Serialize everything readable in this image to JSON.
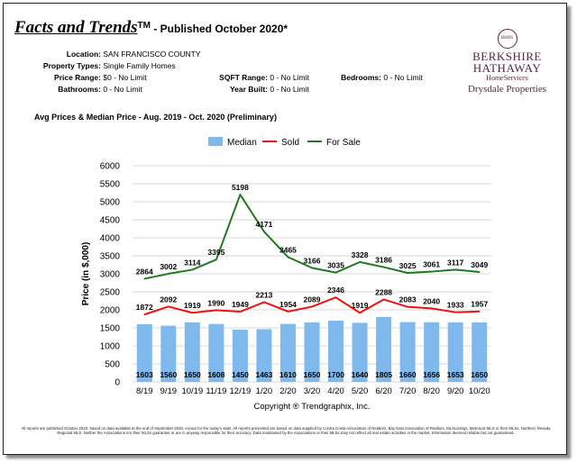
{
  "header": {
    "brand": "Facts and Trends",
    "tm": "TM",
    "subtitle": " - Published October 2020*"
  },
  "info": {
    "location_label": "Location:",
    "location": "SAN FRANCISCO COUNTY",
    "property_label": "Property Types:",
    "property": "Single Family Homes",
    "price_label": "Price Range:",
    "price": "$0 - No Limit",
    "sqft_label": "SQFT Range:",
    "sqft": "0 - No Limit",
    "bedrooms_label": "Bedrooms:",
    "bedrooms": "0 - No Limit",
    "bathrooms_label": "Bathrooms:",
    "bathrooms": "0 - No Limit",
    "yearbuilt_label": "Year Built:",
    "yearbuilt": "0 - No Limit"
  },
  "logo": {
    "seal": "BHHS",
    "line1": "BERKSHIRE",
    "line2": "HATHAWAY",
    "line3": "HomeServices",
    "line4": "Drysdale Properties"
  },
  "chart_title": "Avg Prices & Median Price - Aug. 2019 - Oct. 2020 (Preliminary)",
  "copyright": "Copyright ® Trendgraphix, Inc.",
  "footer": "All reports are published October 2020, based on data available at the end of September 2020, except for the today's stats. All reports presented are based on data supplied by Contra Costa Association of Realtors, Bay East Association of Realtors, MLSListings, MetroList MLS or their MLSs, Northern Nevada Regional MLS. Neither the Associations nor their MLSs guarantee or are in anyway responsible for their accuracy. Data maintained by the Associations or their MLSs may not reflect all real estate activities in the market. Information deemed reliable but not guaranteed.",
  "colors": {
    "median": "#7fb8ec",
    "sold": "#ee1111",
    "forsale": "#1e7a1e",
    "grid": "#d9d9d9"
  },
  "chart_data": {
    "type": "bar",
    "title": "Avg Prices & Median Price - Aug. 2019 - Oct. 2020 (Preliminary)",
    "xlabel": "",
    "ylabel": "Price (in $,000)",
    "ylim": [
      0,
      6000
    ],
    "yticks": [
      0,
      500,
      1000,
      1500,
      2000,
      2500,
      3000,
      3500,
      4000,
      4500,
      5000,
      5500,
      6000
    ],
    "categories": [
      "8/19",
      "9/19",
      "10/19",
      "11/19",
      "12/19",
      "1/20",
      "2/20",
      "3/20",
      "4/20",
      "5/20",
      "6/20",
      "7/20",
      "8/20",
      "9/20",
      "10/20"
    ],
    "legend_position": "top",
    "series": [
      {
        "name": "Median",
        "kind": "bar",
        "values": [
          1603,
          1560,
          1650,
          1608,
          1450,
          1463,
          1610,
          1650,
          1700,
          1640,
          1805,
          1660,
          1656,
          1653,
          1650
        ]
      },
      {
        "name": "Sold",
        "kind": "line",
        "values": [
          1872,
          2092,
          1919,
          1990,
          1949,
          2213,
          1954,
          2089,
          2346,
          1919,
          2288,
          2083,
          2040,
          1933,
          1957
        ]
      },
      {
        "name": "For Sale",
        "kind": "line",
        "values": [
          2864,
          3002,
          3114,
          3395,
          5198,
          4171,
          3465,
          3166,
          3035,
          3328,
          3186,
          3025,
          3061,
          3117,
          3049
        ]
      }
    ]
  }
}
